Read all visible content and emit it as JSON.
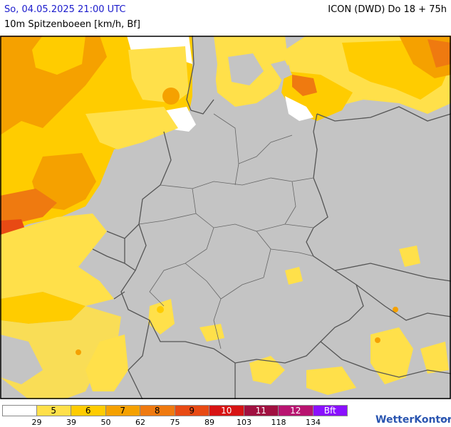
{
  "header": {
    "datetime": "So, 04.05.2025 21:00 UTC",
    "subtitle": "10m Spitzenboeen [km/h, Bf]",
    "model": "ICON (DWD) Do 18 + 75h"
  },
  "colors": {
    "land": "#c4c4c4",
    "border": "#555555",
    "bf5": "#ffe04a",
    "bf6": "#ffcc00",
    "bf7": "#f5a100",
    "bf8": "#ef7a10",
    "bf9": "#e84a14",
    "bf10": "#d71414",
    "bf11": "#a01040",
    "bf12": "#b81470",
    "bf_plus": "#8a10ff"
  },
  "legend": {
    "cells": [
      {
        "label": "",
        "color": "#ffffff"
      },
      {
        "label": "5",
        "color": "#ffe04a"
      },
      {
        "label": "6",
        "color": "#ffcc00"
      },
      {
        "label": "7",
        "color": "#f5a100"
      },
      {
        "label": "8",
        "color": "#ef7a10"
      },
      {
        "label": "9",
        "color": "#e84a14"
      },
      {
        "label": "10",
        "color": "#d71414"
      },
      {
        "label": "11",
        "color": "#a01040"
      },
      {
        "label": "12",
        "color": "#b81470"
      },
      {
        "label": "Bft",
        "color": "#8a10ff"
      }
    ],
    "ticks": [
      "29",
      "39",
      "50",
      "62",
      "75",
      "89",
      "103",
      "118",
      "134"
    ]
  },
  "logo": {
    "text": "WetterKontor",
    "wave_icon": "wave-icon"
  }
}
